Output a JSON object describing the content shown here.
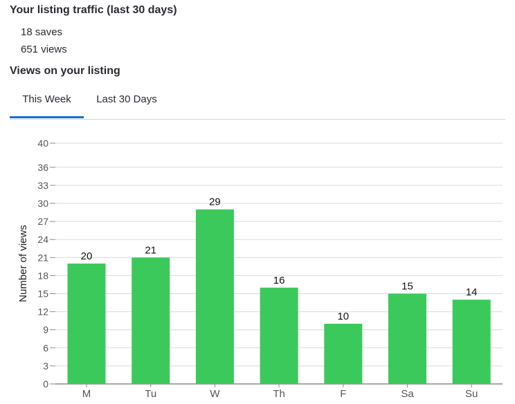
{
  "header": {
    "traffic_title": "Your listing traffic (last 30 days)",
    "saves": "18 saves",
    "views": "651 views",
    "views_title": "Views on your listing"
  },
  "tabs": [
    {
      "label": "This Week",
      "active": true
    },
    {
      "label": "Last 30 Days",
      "active": false
    }
  ],
  "colors": {
    "bar": "#3cc95b",
    "tab_underline": "#0f6fde",
    "grid": "#d9d9d9"
  },
  "chart_data": {
    "type": "bar",
    "categories": [
      "M",
      "Tu",
      "W",
      "Th",
      "F",
      "Sa",
      "Su"
    ],
    "values": [
      20,
      21,
      29,
      16,
      10,
      15,
      14
    ],
    "ylabel": "Number of views",
    "ylim": [
      0,
      40
    ],
    "yticks": [
      0,
      3,
      6,
      9,
      12,
      15,
      18,
      21,
      24,
      27,
      30,
      33,
      36,
      40
    ],
    "grid": true,
    "data_labels": true
  }
}
